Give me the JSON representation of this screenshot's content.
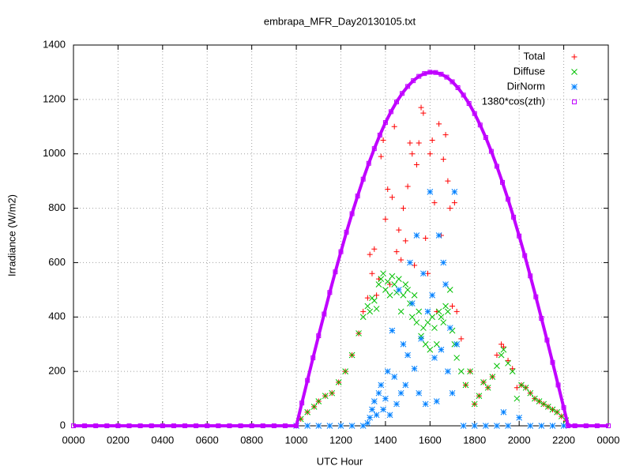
{
  "chart_data": {
    "type": "scatter",
    "title": "embrapa_MFR_Day20130105.txt",
    "x_label": "UTC Hour",
    "y_label": "Irradiance (W/m2)",
    "xlim": [
      0,
      24
    ],
    "ylim": [
      0,
      1400
    ],
    "xticks": [
      {
        "value": 0,
        "label": "0000"
      },
      {
        "value": 2,
        "label": "0200"
      },
      {
        "value": 4,
        "label": "0400"
      },
      {
        "value": 6,
        "label": "0600"
      },
      {
        "value": 8,
        "label": "0800"
      },
      {
        "value": 10,
        "label": "1000"
      },
      {
        "value": 12,
        "label": "1200"
      },
      {
        "value": 14,
        "label": "1400"
      },
      {
        "value": 16,
        "label": "1600"
      },
      {
        "value": 18,
        "label": "1800"
      },
      {
        "value": 20,
        "label": "2000"
      },
      {
        "value": 22,
        "label": "2200"
      },
      {
        "value": 24,
        "label": "0000"
      }
    ],
    "yticks": [
      0,
      200,
      400,
      600,
      800,
      1000,
      1200,
      1400
    ],
    "grid": true,
    "legend": "top-right",
    "series": [
      {
        "name": "Total",
        "color": "#ff0000",
        "marker": "plus",
        "x": [
          10.2,
          10.5,
          10.8,
          11.0,
          11.3,
          11.6,
          11.9,
          12.2,
          12.5,
          12.8,
          13.0,
          13.2,
          13.3,
          13.4,
          13.5,
          13.6,
          13.7,
          13.8,
          13.9,
          14.0,
          14.1,
          14.2,
          14.3,
          14.4,
          14.5,
          14.6,
          14.7,
          14.8,
          14.9,
          15.0,
          15.1,
          15.2,
          15.3,
          15.4,
          15.5,
          15.6,
          15.7,
          15.8,
          15.9,
          16.0,
          16.1,
          16.2,
          16.3,
          16.4,
          16.5,
          16.6,
          16.7,
          16.8,
          16.9,
          17.0,
          17.1,
          17.2,
          17.4,
          17.6,
          17.8,
          18.0,
          18.2,
          18.4,
          18.6,
          18.8,
          19.0,
          19.2,
          19.3,
          19.5,
          19.7,
          19.9,
          20.1,
          20.3,
          20.5,
          20.7,
          20.9,
          21.1,
          21.3,
          21.5,
          21.7,
          21.9,
          22.1
        ],
        "values": [
          25,
          50,
          70,
          90,
          110,
          120,
          160,
          200,
          260,
          340,
          420,
          470,
          630,
          560,
          650,
          480,
          540,
          990,
          1050,
          760,
          870,
          520,
          840,
          1100,
          640,
          720,
          610,
          800,
          680,
          880,
          1040,
          1000,
          590,
          960,
          1040,
          1170,
          1150,
          690,
          560,
          1000,
          1050,
          820,
          420,
          1110,
          700,
          980,
          1070,
          900,
          800,
          440,
          820,
          420,
          320,
          150,
          200,
          80,
          110,
          160,
          140,
          180,
          260,
          300,
          290,
          240,
          210,
          140,
          150,
          140,
          120,
          100,
          90,
          80,
          70,
          60,
          50,
          35,
          20
        ]
      },
      {
        "name": "Diffuse",
        "color": "#00c000",
        "marker": "cross",
        "x": [
          10.2,
          10.5,
          10.8,
          11.0,
          11.3,
          11.6,
          11.9,
          12.2,
          12.5,
          12.8,
          13.0,
          13.2,
          13.3,
          13.4,
          13.5,
          13.6,
          13.7,
          13.8,
          13.9,
          14.0,
          14.1,
          14.2,
          14.3,
          14.4,
          14.5,
          14.6,
          14.7,
          14.8,
          14.9,
          15.0,
          15.1,
          15.2,
          15.3,
          15.4,
          15.5,
          15.6,
          15.7,
          15.8,
          15.9,
          16.0,
          16.1,
          16.2,
          16.3,
          16.4,
          16.5,
          16.6,
          16.7,
          16.8,
          16.9,
          17.0,
          17.1,
          17.2,
          17.4,
          17.6,
          17.8,
          18.0,
          18.2,
          18.4,
          18.6,
          18.8,
          19.0,
          19.2,
          19.3,
          19.5,
          19.7,
          19.9,
          20.1,
          20.3,
          20.5,
          20.7,
          20.9,
          21.1,
          21.3,
          21.5,
          21.7,
          21.9,
          22.1
        ],
        "values": [
          25,
          50,
          70,
          90,
          110,
          120,
          160,
          200,
          260,
          340,
          400,
          440,
          420,
          470,
          460,
          430,
          520,
          540,
          560,
          500,
          530,
          480,
          550,
          520,
          490,
          540,
          420,
          480,
          520,
          500,
          450,
          400,
          480,
          380,
          420,
          330,
          360,
          300,
          380,
          280,
          400,
          360,
          300,
          420,
          400,
          380,
          440,
          420,
          500,
          350,
          300,
          250,
          200,
          150,
          200,
          80,
          110,
          160,
          140,
          180,
          220,
          260,
          280,
          230,
          200,
          100,
          150,
          140,
          120,
          100,
          90,
          80,
          70,
          60,
          50,
          35,
          20
        ]
      },
      {
        "name": "DirNorm",
        "color": "#0080ff",
        "marker": "star",
        "x": [
          10.0,
          10.5,
          11.0,
          11.5,
          12.0,
          12.5,
          13.0,
          13.2,
          13.3,
          13.4,
          13.5,
          13.6,
          13.7,
          13.8,
          13.9,
          14.0,
          14.1,
          14.2,
          14.3,
          14.4,
          14.5,
          14.6,
          14.7,
          14.8,
          14.9,
          15.0,
          15.1,
          15.2,
          15.3,
          15.4,
          15.5,
          15.6,
          15.7,
          15.8,
          15.9,
          16.0,
          16.1,
          16.2,
          16.3,
          16.4,
          16.5,
          16.6,
          16.7,
          16.8,
          16.9,
          17.0,
          17.1,
          17.2,
          17.5,
          18.0,
          18.5,
          19.0,
          19.3,
          19.5,
          20.0,
          20.5,
          21.0,
          21.5,
          22.0
        ],
        "values": [
          0,
          0,
          0,
          0,
          0,
          0,
          0,
          10,
          30,
          60,
          90,
          40,
          120,
          150,
          60,
          100,
          200,
          40,
          350,
          180,
          80,
          500,
          120,
          300,
          150,
          260,
          600,
          450,
          210,
          700,
          120,
          320,
          560,
          80,
          420,
          860,
          480,
          250,
          90,
          700,
          280,
          600,
          520,
          200,
          360,
          120,
          860,
          300,
          0,
          0,
          0,
          0,
          50,
          0,
          30,
          0,
          0,
          0,
          0
        ]
      },
      {
        "name": "1380*cos(zth)",
        "color": "#c000ff",
        "marker": "square",
        "x": [
          0,
          0.5,
          1,
          1.5,
          2,
          2.5,
          3,
          3.5,
          4,
          4.5,
          5,
          5.5,
          6,
          6.5,
          7,
          7.5,
          8,
          8.5,
          9,
          9.5,
          10.0,
          10.25,
          10.5,
          10.75,
          11.0,
          11.25,
          11.5,
          11.75,
          12.0,
          12.25,
          12.5,
          12.75,
          13.0,
          13.25,
          13.5,
          13.75,
          14.0,
          14.25,
          14.5,
          14.75,
          15.0,
          15.25,
          15.5,
          15.75,
          16.0,
          16.25,
          16.5,
          16.75,
          17.0,
          17.25,
          17.5,
          17.75,
          18.0,
          18.25,
          18.5,
          18.75,
          19.0,
          19.25,
          19.5,
          19.75,
          20.0,
          20.25,
          20.5,
          20.75,
          21.0,
          21.25,
          21.5,
          21.75,
          22.0,
          22.2,
          22.5,
          23,
          23.5,
          24
        ],
        "values": [
          0,
          0,
          0,
          0,
          0,
          0,
          0,
          0,
          0,
          0,
          0,
          0,
          0,
          0,
          0,
          0,
          0,
          0,
          0,
          0,
          0,
          84,
          167,
          250,
          331,
          411,
          490,
          566,
          640,
          712,
          780,
          845,
          907,
          965,
          1019,
          1069,
          1115,
          1155,
          1191,
          1222,
          1248,
          1269,
          1285,
          1295,
          1300,
          1299,
          1293,
          1282,
          1265,
          1243,
          1216,
          1185,
          1148,
          1106,
          1060,
          1009,
          954,
          895,
          833,
          767,
          698,
          626,
          551,
          474,
          395,
          315,
          233,
          150,
          67,
          0,
          0,
          0,
          0,
          0
        ]
      }
    ]
  }
}
